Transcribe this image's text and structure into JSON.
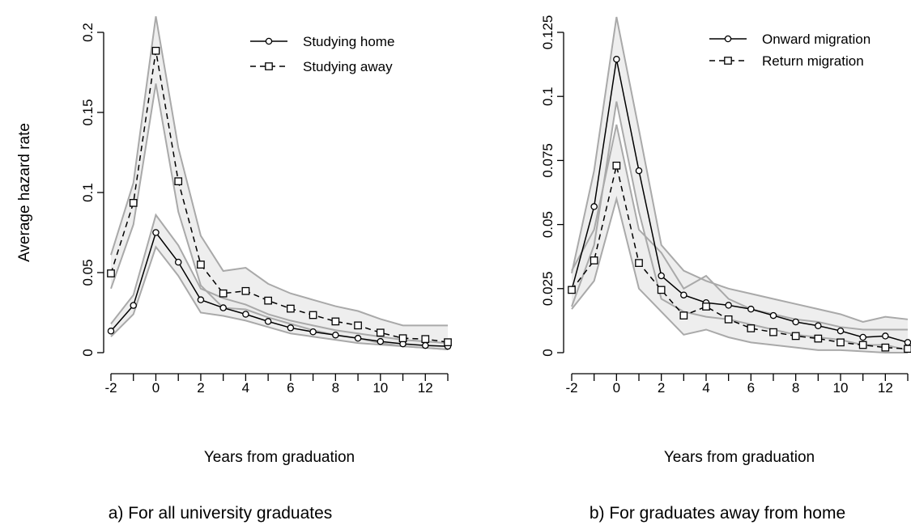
{
  "chart_data": [
    {
      "type": "line",
      "caption": "a) For all university graduates",
      "xlabel": "Years from graduation",
      "ylabel": "Average hazard rate",
      "x": [
        -2,
        -1,
        0,
        1,
        2,
        3,
        4,
        5,
        6,
        7,
        8,
        9,
        10,
        11,
        12,
        13
      ],
      "x_ticks": [
        -2,
        0,
        2,
        4,
        6,
        8,
        10,
        12
      ],
      "y_ticks": [
        0,
        0.05,
        0.1,
        0.15,
        0.2
      ],
      "y_tick_labels": [
        "0",
        "0.05",
        "0.1",
        "0.15",
        "0.2"
      ],
      "xlim": [
        -2,
        13
      ],
      "ylim": [
        0,
        0.2
      ],
      "grid": false,
      "legend_position": "top-right",
      "series": [
        {
          "name": "Studying home",
          "line_style": "solid",
          "marker": "circle",
          "values": [
            0.0135,
            0.0295,
            0.075,
            0.0565,
            0.033,
            0.028,
            0.024,
            0.0195,
            0.0155,
            0.013,
            0.011,
            0.009,
            0.007,
            0.0055,
            0.0045,
            0.004
          ],
          "ci_lower": [
            0.01,
            0.024,
            0.066,
            0.048,
            0.025,
            0.023,
            0.02,
            0.016,
            0.012,
            0.01,
            0.008,
            0.006,
            0.005,
            0.004,
            0.003,
            0.002
          ],
          "ci_upper": [
            0.018,
            0.036,
            0.086,
            0.067,
            0.04,
            0.034,
            0.03,
            0.024,
            0.02,
            0.017,
            0.014,
            0.012,
            0.01,
            0.008,
            0.007,
            0.006
          ]
        },
        {
          "name": "Studying away",
          "line_style": "dashed",
          "marker": "square",
          "values": [
            0.0495,
            0.0935,
            0.1885,
            0.107,
            0.055,
            0.037,
            0.0385,
            0.0325,
            0.0275,
            0.0235,
            0.0195,
            0.017,
            0.0125,
            0.009,
            0.0085,
            0.0065
          ],
          "ci_lower": [
            0.04,
            0.08,
            0.168,
            0.088,
            0.042,
            0.028,
            0.027,
            0.022,
            0.018,
            0.014,
            0.011,
            0.009,
            0.006,
            0.004,
            0.003,
            0.002
          ],
          "ci_upper": [
            0.061,
            0.106,
            0.21,
            0.128,
            0.073,
            0.051,
            0.053,
            0.043,
            0.037,
            0.033,
            0.029,
            0.026,
            0.021,
            0.017,
            0.017,
            0.017
          ]
        }
      ],
      "colors": {
        "ci_fill": "#ebebeb",
        "ci_edge": "#a9a9a9",
        "line": "#000000"
      }
    },
    {
      "type": "line",
      "caption": "b) For graduates away from home",
      "xlabel": "Years from graduation",
      "ylabel": "",
      "x": [
        -2,
        -1,
        0,
        1,
        2,
        3,
        4,
        5,
        6,
        7,
        8,
        9,
        10,
        11,
        12,
        13
      ],
      "x_ticks": [
        -2,
        0,
        2,
        4,
        6,
        8,
        10,
        12
      ],
      "y_ticks": [
        0,
        0.025,
        0.05,
        0.075,
        0.1,
        0.125
      ],
      "y_tick_labels": [
        "0",
        "0.025",
        "0.05",
        "0.075",
        "0.1",
        "0.125"
      ],
      "xlim": [
        -2,
        13
      ],
      "ylim": [
        0,
        0.125
      ],
      "grid": false,
      "legend_position": "top-right",
      "series": [
        {
          "name": "Onward migration",
          "line_style": "solid",
          "marker": "circle",
          "values": [
            0.0245,
            0.057,
            0.1145,
            0.071,
            0.03,
            0.0225,
            0.0195,
            0.0185,
            0.017,
            0.0145,
            0.012,
            0.0105,
            0.0085,
            0.006,
            0.0065,
            0.004
          ],
          "ci_lower": [
            0.018,
            0.042,
            0.098,
            0.055,
            0.021,
            0.016,
            0.014,
            0.013,
            0.011,
            0.009,
            0.007,
            0.006,
            0.005,
            0.003,
            0.003,
            0.001
          ],
          "ci_upper": [
            0.031,
            0.071,
            0.131,
            0.087,
            0.042,
            0.032,
            0.028,
            0.025,
            0.023,
            0.021,
            0.019,
            0.017,
            0.015,
            0.012,
            0.014,
            0.013
          ]
        },
        {
          "name": "Return migration",
          "line_style": "dashed",
          "marker": "square",
          "values": [
            0.0245,
            0.036,
            0.073,
            0.035,
            0.0245,
            0.0145,
            0.018,
            0.013,
            0.0095,
            0.008,
            0.0065,
            0.0055,
            0.004,
            0.003,
            0.002,
            0.0015
          ],
          "ci_lower": [
            0.017,
            0.028,
            0.06,
            0.025,
            0.016,
            0.007,
            0.009,
            0.006,
            0.004,
            0.003,
            0.002,
            0.001,
            0.001,
            0.0005,
            0.0,
            0.0
          ],
          "ci_upper": [
            0.032,
            0.048,
            0.089,
            0.048,
            0.039,
            0.025,
            0.03,
            0.021,
            0.017,
            0.015,
            0.013,
            0.012,
            0.01,
            0.009,
            0.009,
            0.009
          ]
        }
      ],
      "colors": {
        "ci_fill": "#ebebeb",
        "ci_edge": "#a9a9a9",
        "line": "#000000"
      }
    }
  ]
}
